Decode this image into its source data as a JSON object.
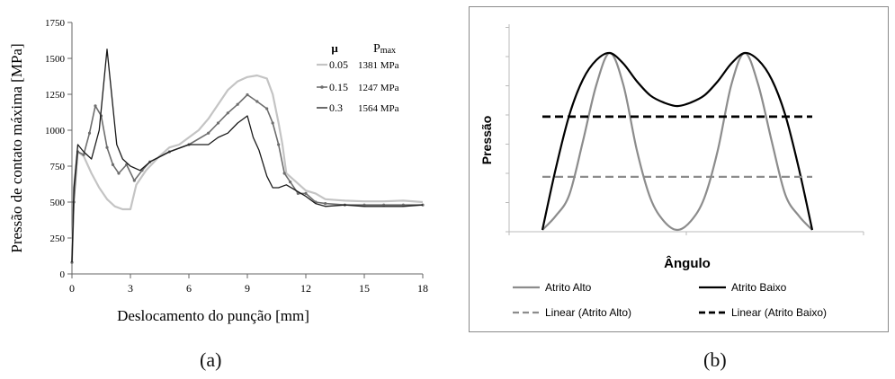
{
  "colors": {
    "mu_005": "#c4c4c4",
    "mu_015": "#6e6e6e",
    "mu_03": "#1a1a1a",
    "atrito_alto": "#8c8c8c",
    "atrito_baixo": "#000000"
  },
  "panel_labels": {
    "a": "(a)",
    "b": "(b)"
  },
  "chart_data": [
    {
      "type": "line",
      "title": "",
      "xlabel": "Deslocamento do punção [mm]",
      "ylabel": "Pressão de contato máxima [MPa]",
      "xlim": [
        0,
        18
      ],
      "ylim": [
        0,
        1750
      ],
      "xticks": [
        0,
        3,
        6,
        9,
        12,
        15,
        18
      ],
      "yticks": [
        0,
        250,
        500,
        750,
        1000,
        1250,
        1500,
        1750
      ],
      "grid": false,
      "legend": {
        "placement": "top-right",
        "header_mu": "μ",
        "header_p": "P",
        "header_p_sub": "max",
        "entries": [
          {
            "mu": "0.05",
            "pmax": "1381 MPa"
          },
          {
            "mu": "0.15",
            "pmax": "1247 MPa"
          },
          {
            "mu": "0.3",
            "pmax": "1564 MPa"
          }
        ]
      },
      "series": [
        {
          "mu": "0.05",
          "x": [
            0,
            0.1,
            0.3,
            0.6,
            1.0,
            1.4,
            1.8,
            2.2,
            2.6,
            3.0,
            3.3,
            3.8,
            4.5,
            5.0,
            5.5,
            6.0,
            6.5,
            7.0,
            7.5,
            8.0,
            8.5,
            9.0,
            9.5,
            10.0,
            10.3,
            10.6,
            10.8,
            11.0,
            11.5,
            12.0,
            12.5,
            13.0,
            14.0,
            15.0,
            16.0,
            17.0,
            18.0
          ],
          "y": [
            80,
            600,
            850,
            820,
            700,
            600,
            520,
            470,
            450,
            450,
            620,
            720,
            820,
            880,
            900,
            950,
            1000,
            1080,
            1180,
            1280,
            1340,
            1370,
            1381,
            1360,
            1250,
            1050,
            900,
            700,
            640,
            580,
            560,
            520,
            510,
            505,
            505,
            510,
            500
          ]
        },
        {
          "mu": "0.15",
          "x": [
            0,
            0.1,
            0.3,
            0.6,
            0.9,
            1.2,
            1.5,
            1.8,
            2.1,
            2.4,
            2.8,
            3.2,
            3.6,
            4.0,
            5.0,
            6.0,
            7.0,
            7.5,
            8.0,
            8.5,
            9.0,
            9.5,
            10.0,
            10.3,
            10.6,
            10.9,
            11.2,
            11.6,
            12.0,
            12.5,
            13.0,
            14.0,
            15.0,
            16.0,
            17.0,
            18.0
          ],
          "y": [
            80,
            500,
            850,
            830,
            980,
            1170,
            1100,
            880,
            760,
            700,
            760,
            650,
            720,
            780,
            850,
            900,
            980,
            1050,
            1120,
            1180,
            1247,
            1200,
            1150,
            1050,
            900,
            700,
            640,
            560,
            560,
            500,
            490,
            480,
            480,
            480,
            480,
            480
          ]
        },
        {
          "mu": "0.3",
          "x": [
            0,
            0.1,
            0.3,
            0.6,
            1.0,
            1.4,
            1.8,
            2.0,
            2.3,
            2.6,
            3.0,
            3.5,
            4.0,
            5.0,
            6.0,
            7.0,
            7.5,
            8.0,
            8.5,
            9.0,
            9.3,
            9.6,
            10.0,
            10.3,
            10.6,
            11.0,
            11.5,
            12.0,
            12.5,
            13.0,
            14.0,
            15.0,
            16.0,
            17.0,
            18.0
          ],
          "y": [
            80,
            600,
            900,
            850,
            800,
            1000,
            1564,
            1300,
            900,
            800,
            750,
            720,
            780,
            850,
            900,
            900,
            950,
            980,
            1050,
            1100,
            950,
            860,
            680,
            600,
            600,
            620,
            580,
            540,
            490,
            470,
            480,
            470,
            470,
            470,
            480
          ]
        }
      ]
    },
    {
      "type": "line",
      "title": "",
      "xlabel": "Ângulo",
      "ylabel": "Pressão",
      "grid": false,
      "legend": {
        "placement": "bottom",
        "entries": [
          "Atrito Alto",
          "Atrito Baixo",
          "Linear (Atrito Alto)",
          "Linear (Atrito Baixo)"
        ]
      },
      "xlim": [
        0,
        1
      ],
      "ylim": [
        0,
        1
      ],
      "series": [
        {
          "name": "Atrito Alto",
          "x": [
            0,
            0.05,
            0.1,
            0.15,
            0.2,
            0.25,
            0.3,
            0.35,
            0.4,
            0.45,
            0.5,
            0.55,
            0.6,
            0.65,
            0.7,
            0.75,
            0.8,
            0.85,
            0.9,
            0.95,
            1.0
          ],
          "y": [
            0.0,
            0.08,
            0.2,
            0.5,
            0.82,
            1.0,
            0.82,
            0.45,
            0.18,
            0.05,
            0.0,
            0.05,
            0.18,
            0.45,
            0.82,
            1.0,
            0.82,
            0.5,
            0.2,
            0.08,
            0.0
          ]
        },
        {
          "name": "Atrito Baixo",
          "x": [
            0,
            0.05,
            0.1,
            0.15,
            0.2,
            0.25,
            0.3,
            0.35,
            0.4,
            0.45,
            0.5,
            0.55,
            0.6,
            0.65,
            0.7,
            0.75,
            0.8,
            0.85,
            0.9,
            0.95,
            1.0
          ],
          "y": [
            0.0,
            0.35,
            0.65,
            0.85,
            0.96,
            1.0,
            0.94,
            0.84,
            0.76,
            0.72,
            0.7,
            0.72,
            0.76,
            0.84,
            0.94,
            1.0,
            0.96,
            0.85,
            0.65,
            0.35,
            0.0
          ]
        },
        {
          "name": "Linear (Atrito Alto)",
          "x": [
            0,
            1
          ],
          "y": [
            0.3,
            0.3
          ]
        },
        {
          "name": "Linear (Atrito Baixo)",
          "x": [
            0,
            1
          ],
          "y": [
            0.64,
            0.64
          ]
        }
      ]
    }
  ]
}
